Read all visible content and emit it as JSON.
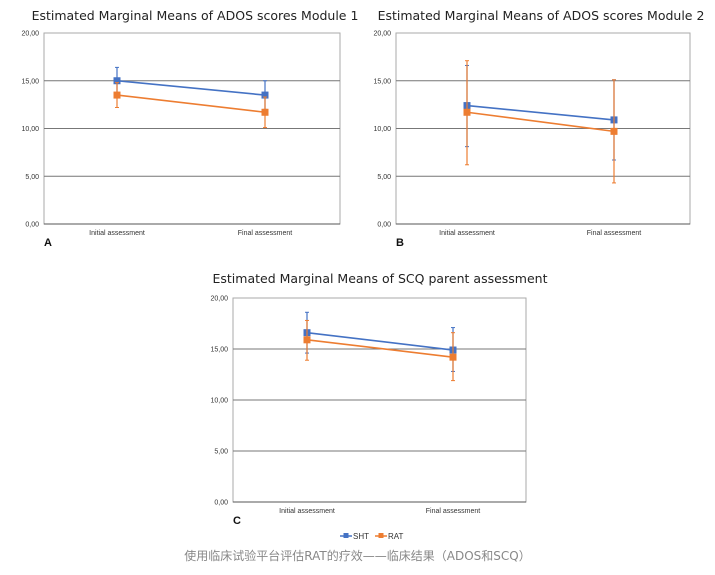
{
  "colors": {
    "SHT": "#4472c4",
    "RAT": "#ed7d31",
    "grid": "#777777",
    "frame": "#aaaaaa"
  },
  "legend": [
    {
      "name": "SHT",
      "color": "#4472c4"
    },
    {
      "name": "RAT",
      "color": "#ed7d31"
    }
  ],
  "caption": "使用临床试验平台评估RAT的疗效——临床结果（ADOS和SCQ）",
  "chart_data": [
    {
      "type": "line",
      "panel": "A",
      "title": "Estimated Marginal Means of ADOS scores Module 1",
      "categories": [
        "Initial assessment",
        "Final assessment"
      ],
      "yticks": [
        "0,00",
        "5,00",
        "10,00",
        "15,00",
        "20,00"
      ],
      "ylim": [
        0,
        20
      ],
      "grid": true,
      "series": [
        {
          "name": "SHT",
          "values": [
            15.0,
            13.5
          ],
          "err_low": [
            13.6,
            12.0
          ],
          "err_high": [
            16.4,
            15.0
          ]
        },
        {
          "name": "RAT",
          "values": [
            13.5,
            11.7
          ],
          "err_low": [
            12.2,
            10.1
          ],
          "err_high": [
            14.8,
            13.3
          ]
        }
      ]
    },
    {
      "type": "line",
      "panel": "B",
      "title": "Estimated Marginal Means of ADOS scores Module 2",
      "categories": [
        "Initial assessment",
        "Final assessment"
      ],
      "yticks": [
        "0,00",
        "5,00",
        "10,00",
        "15,00",
        "20,00"
      ],
      "ylim": [
        0,
        20
      ],
      "grid": true,
      "series": [
        {
          "name": "SHT",
          "values": [
            12.4,
            10.9
          ],
          "err_low": [
            8.1,
            6.7
          ],
          "err_high": [
            16.6,
            15.1
          ]
        },
        {
          "name": "RAT",
          "values": [
            11.7,
            9.7
          ],
          "err_low": [
            6.2,
            4.3
          ],
          "err_high": [
            17.1,
            15.1
          ]
        }
      ]
    },
    {
      "type": "line",
      "panel": "C",
      "title": "Estimated Marginal Means of SCQ parent assessment",
      "categories": [
        "Initial assessment",
        "Final assessment"
      ],
      "yticks": [
        "0,00",
        "5,00",
        "10,00",
        "15,00",
        "20,00"
      ],
      "ylim": [
        0,
        20
      ],
      "grid": true,
      "legend_position": "bottom",
      "series": [
        {
          "name": "SHT",
          "values": [
            16.6,
            14.9
          ],
          "err_low": [
            14.6,
            12.8
          ],
          "err_high": [
            18.6,
            17.1
          ]
        },
        {
          "name": "RAT",
          "values": [
            15.9,
            14.2
          ],
          "err_low": [
            13.9,
            11.9
          ],
          "err_high": [
            17.8,
            16.6
          ]
        }
      ]
    }
  ]
}
